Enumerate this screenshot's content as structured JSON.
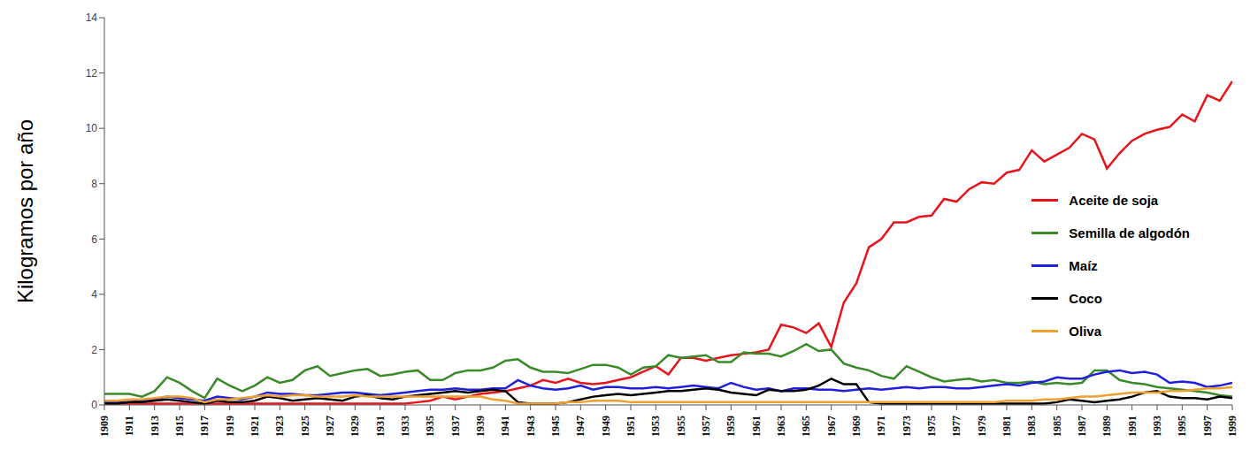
{
  "chart_data": {
    "type": "line",
    "y_label": "Kilogramos por año",
    "grid": false,
    "legend": "right",
    "x": [
      1909,
      1910,
      1911,
      1912,
      1913,
      1914,
      1915,
      1916,
      1917,
      1918,
      1919,
      1920,
      1921,
      1922,
      1923,
      1924,
      1925,
      1926,
      1927,
      1928,
      1929,
      1930,
      1931,
      1932,
      1933,
      1934,
      1935,
      1936,
      1937,
      1938,
      1939,
      1940,
      1941,
      1942,
      1943,
      1944,
      1945,
      1946,
      1947,
      1948,
      1949,
      1950,
      1951,
      1952,
      1953,
      1954,
      1955,
      1956,
      1957,
      1958,
      1959,
      1960,
      1961,
      1962,
      1963,
      1964,
      1965,
      1966,
      1967,
      1968,
      1969,
      1970,
      1971,
      1972,
      1973,
      1974,
      1975,
      1976,
      1977,
      1978,
      1979,
      1980,
      1981,
      1982,
      1983,
      1984,
      1985,
      1986,
      1987,
      1988,
      1989,
      1990,
      1991,
      1992,
      1993,
      1994,
      1995,
      1996,
      1997,
      1998,
      1999
    ],
    "xlim": [
      1909,
      1999
    ],
    "xticks": [
      1909,
      1911,
      1913,
      1915,
      1917,
      1919,
      1921,
      1923,
      1925,
      1927,
      1929,
      1931,
      1933,
      1935,
      1937,
      1939,
      1941,
      1943,
      1945,
      1947,
      1949,
      1951,
      1953,
      1955,
      1957,
      1959,
      1961,
      1963,
      1965,
      1967,
      1969,
      1971,
      1973,
      1975,
      1977,
      1979,
      1981,
      1983,
      1985,
      1987,
      1989,
      1991,
      1993,
      1995,
      1997,
      1999
    ],
    "ylim": [
      0,
      14
    ],
    "yticks": [
      0,
      2,
      4,
      6,
      8,
      10,
      12,
      14
    ],
    "series": [
      {
        "name": "Aceite de soja",
        "color": "#e8141c",
        "values": [
          0.05,
          0.05,
          0.05,
          0.05,
          0.05,
          0.05,
          0.05,
          0.05,
          0.05,
          0.05,
          0.05,
          0.05,
          0.05,
          0.05,
          0.05,
          0.05,
          0.05,
          0.05,
          0.05,
          0.05,
          0.05,
          0.05,
          0.05,
          0.05,
          0.05,
          0.1,
          0.15,
          0.3,
          0.2,
          0.3,
          0.4,
          0.45,
          0.5,
          0.6,
          0.7,
          0.9,
          0.8,
          0.95,
          0.8,
          0.75,
          0.8,
          0.9,
          1.0,
          1.2,
          1.4,
          1.1,
          1.7,
          1.7,
          1.6,
          1.7,
          1.8,
          1.85,
          1.9,
          2.0,
          2.9,
          2.8,
          2.6,
          2.95,
          2.1,
          3.7,
          4.4,
          5.7,
          6.0,
          6.6,
          6.6,
          6.8,
          6.85,
          7.45,
          7.35,
          7.8,
          8.05,
          8.0,
          8.4,
          8.5,
          9.2,
          8.8,
          9.05,
          9.3,
          9.8,
          9.6,
          8.55,
          9.1,
          9.55,
          9.8,
          9.95,
          10.05,
          10.5,
          10.25,
          11.2,
          11.0,
          11.7
        ]
      },
      {
        "name": "Semilla de algodón",
        "color": "#3a8a2a",
        "values": [
          0.4,
          0.4,
          0.4,
          0.3,
          0.5,
          1.0,
          0.8,
          0.5,
          0.25,
          0.95,
          0.7,
          0.5,
          0.7,
          1.0,
          0.8,
          0.9,
          1.25,
          1.4,
          1.05,
          1.15,
          1.25,
          1.3,
          1.05,
          1.1,
          1.2,
          1.25,
          0.9,
          0.9,
          1.15,
          1.25,
          1.25,
          1.35,
          1.6,
          1.65,
          1.35,
          1.2,
          1.2,
          1.15,
          1.3,
          1.45,
          1.45,
          1.35,
          1.1,
          1.35,
          1.4,
          1.8,
          1.7,
          1.75,
          1.8,
          1.55,
          1.55,
          1.9,
          1.85,
          1.85,
          1.75,
          1.95,
          2.2,
          1.95,
          2.0,
          1.5,
          1.35,
          1.25,
          1.05,
          0.95,
          1.4,
          1.2,
          1.0,
          0.85,
          0.9,
          0.95,
          0.85,
          0.9,
          0.8,
          0.8,
          0.85,
          0.75,
          0.8,
          0.75,
          0.8,
          1.25,
          1.25,
          0.9,
          0.8,
          0.75,
          0.65,
          0.6,
          0.55,
          0.5,
          0.45,
          0.35,
          0.3
        ]
      },
      {
        "name": "Maíz",
        "color": "#1f1fe0",
        "values": [
          0.1,
          0.1,
          0.1,
          0.15,
          0.2,
          0.3,
          0.25,
          0.2,
          0.15,
          0.3,
          0.25,
          0.2,
          0.3,
          0.45,
          0.4,
          0.4,
          0.35,
          0.35,
          0.4,
          0.45,
          0.45,
          0.4,
          0.35,
          0.4,
          0.45,
          0.5,
          0.55,
          0.55,
          0.6,
          0.55,
          0.55,
          0.6,
          0.6,
          0.9,
          0.7,
          0.6,
          0.55,
          0.6,
          0.7,
          0.55,
          0.65,
          0.65,
          0.6,
          0.6,
          0.65,
          0.6,
          0.65,
          0.7,
          0.65,
          0.6,
          0.8,
          0.65,
          0.55,
          0.6,
          0.5,
          0.6,
          0.6,
          0.55,
          0.55,
          0.5,
          0.55,
          0.6,
          0.55,
          0.6,
          0.65,
          0.6,
          0.65,
          0.65,
          0.6,
          0.6,
          0.65,
          0.7,
          0.75,
          0.7,
          0.8,
          0.85,
          1.0,
          0.95,
          0.95,
          1.1,
          1.2,
          1.25,
          1.15,
          1.2,
          1.1,
          0.8,
          0.85,
          0.8,
          0.65,
          0.7,
          0.8
        ]
      },
      {
        "name": "Coco",
        "color": "#000000",
        "values": [
          0.05,
          0.05,
          0.1,
          0.1,
          0.15,
          0.2,
          0.15,
          0.1,
          0.05,
          0.15,
          0.1,
          0.1,
          0.15,
          0.3,
          0.25,
          0.15,
          0.2,
          0.25,
          0.2,
          0.15,
          0.3,
          0.35,
          0.25,
          0.2,
          0.3,
          0.35,
          0.4,
          0.45,
          0.5,
          0.45,
          0.5,
          0.55,
          0.5,
          0.1,
          0.05,
          0.05,
          0.05,
          0.1,
          0.2,
          0.3,
          0.35,
          0.4,
          0.35,
          0.4,
          0.45,
          0.5,
          0.5,
          0.55,
          0.6,
          0.55,
          0.45,
          0.4,
          0.35,
          0.55,
          0.5,
          0.5,
          0.55,
          0.7,
          0.95,
          0.75,
          0.75,
          0.1,
          0.05,
          0.05,
          0.05,
          0.05,
          0.05,
          0.05,
          0.05,
          0.05,
          0.05,
          0.05,
          0.05,
          0.05,
          0.05,
          0.05,
          0.1,
          0.2,
          0.15,
          0.1,
          0.15,
          0.2,
          0.3,
          0.45,
          0.5,
          0.3,
          0.25,
          0.25,
          0.2,
          0.3,
          0.25
        ]
      },
      {
        "name": "Oliva",
        "color": "#f0a030",
        "values": [
          0.15,
          0.15,
          0.2,
          0.2,
          0.25,
          0.3,
          0.3,
          0.25,
          0.1,
          0.2,
          0.2,
          0.25,
          0.3,
          0.35,
          0.3,
          0.35,
          0.35,
          0.3,
          0.3,
          0.3,
          0.35,
          0.3,
          0.3,
          0.3,
          0.3,
          0.3,
          0.3,
          0.3,
          0.3,
          0.3,
          0.3,
          0.2,
          0.15,
          0.05,
          0.05,
          0.05,
          0.05,
          0.1,
          0.1,
          0.15,
          0.15,
          0.15,
          0.1,
          0.1,
          0.1,
          0.1,
          0.1,
          0.1,
          0.1,
          0.1,
          0.1,
          0.1,
          0.1,
          0.1,
          0.1,
          0.1,
          0.1,
          0.1,
          0.1,
          0.1,
          0.1,
          0.1,
          0.1,
          0.1,
          0.1,
          0.1,
          0.1,
          0.1,
          0.1,
          0.1,
          0.1,
          0.1,
          0.15,
          0.15,
          0.15,
          0.2,
          0.2,
          0.25,
          0.3,
          0.3,
          0.35,
          0.4,
          0.45,
          0.45,
          0.45,
          0.5,
          0.5,
          0.55,
          0.6,
          0.6,
          0.65
        ]
      }
    ]
  }
}
